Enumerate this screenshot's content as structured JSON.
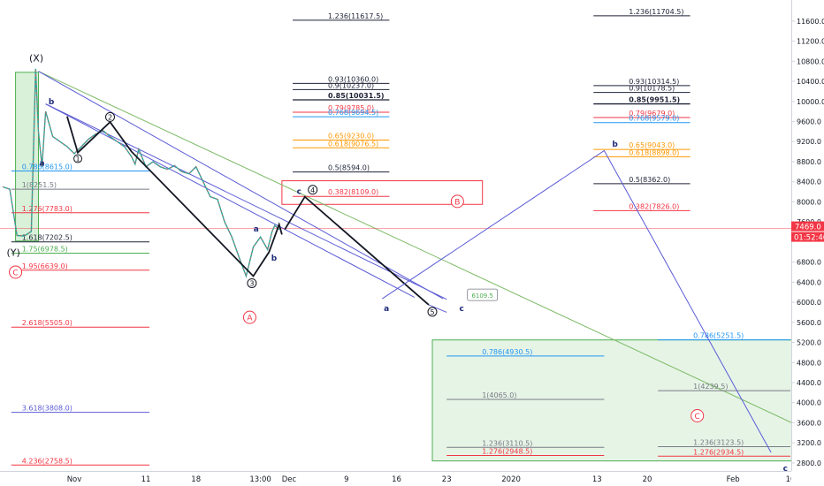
{
  "chart_data": {
    "type": "line",
    "title": "",
    "xlabel": "",
    "ylabel": "",
    "ylim": [
      2640,
      12020
    ],
    "grid": false,
    "x_ticks": [
      {
        "d": 10,
        "label": "Nov"
      },
      {
        "d": 20,
        "label": "11"
      },
      {
        "d": 27,
        "label": "18"
      },
      {
        "d": 36,
        "label": "13:00"
      },
      {
        "d": 40,
        "label": "Dec"
      },
      {
        "d": 48,
        "label": "9"
      },
      {
        "d": 55,
        "label": "16"
      },
      {
        "d": 62,
        "label": "23"
      },
      {
        "d": 71,
        "label": "2020"
      },
      {
        "d": 83,
        "label": "13"
      },
      {
        "d": 90,
        "label": "20"
      },
      {
        "d": 102,
        "label": "Feb"
      },
      {
        "d": 110,
        "label": "10"
      }
    ],
    "y_ticks": [
      11600,
      11200,
      10800,
      10400,
      10000,
      9600,
      9200,
      8800,
      8400,
      8000,
      7600,
      6800,
      6400,
      6000,
      5600,
      5200,
      4800,
      4400,
      4000,
      3600,
      3200,
      2800
    ],
    "current_price": {
      "value": 7469,
      "label": "7469.0",
      "timer": "01:52:46"
    },
    "price_series": [
      [
        0,
        8300
      ],
      [
        1,
        8250
      ],
      [
        2,
        7330
      ],
      [
        3,
        7320
      ],
      [
        4,
        7410
      ],
      [
        4.6,
        10650
      ],
      [
        5,
        9400
      ],
      [
        5.5,
        8700
      ],
      [
        6,
        9800
      ],
      [
        7,
        9300
      ],
      [
        8,
        9200
      ],
      [
        9,
        9100
      ],
      [
        10,
        8960
      ],
      [
        11,
        9100
      ],
      [
        12,
        9250
      ],
      [
        13,
        9350
      ],
      [
        14,
        9420
      ],
      [
        15,
        9300
      ],
      [
        16,
        9200
      ],
      [
        17,
        9100
      ],
      [
        18,
        8900
      ],
      [
        18.5,
        8750
      ],
      [
        19,
        9050
      ],
      [
        20,
        8700
      ],
      [
        21,
        8800
      ],
      [
        22,
        8700
      ],
      [
        23,
        8650
      ],
      [
        24,
        8720
      ],
      [
        25,
        8600
      ],
      [
        26,
        8560
      ],
      [
        27,
        8700
      ],
      [
        28,
        8400
      ],
      [
        29,
        8100
      ],
      [
        30,
        8050
      ],
      [
        31,
        7600
      ],
      [
        32,
        7300
      ],
      [
        33,
        6900
      ],
      [
        34,
        6520
      ],
      [
        35,
        7100
      ],
      [
        36,
        7300
      ],
      [
        37,
        7050
      ],
      [
        37.6,
        7400
      ],
      [
        38,
        7530
      ],
      [
        38.6,
        7450
      ]
    ],
    "wave_path": [
      [
        9,
        9700
      ],
      [
        10.5,
        8980
      ],
      [
        15,
        9590
      ],
      [
        18,
        9000
      ],
      [
        35,
        6520
      ],
      [
        37.2,
        7000
      ],
      [
        38.6,
        7550
      ],
      [
        39,
        7350
      ]
    ],
    "projection_path": [
      [
        39.4,
        7450
      ],
      [
        42.2,
        8100
      ],
      [
        59.5,
        5950
      ]
    ],
    "projection2_path": [
      [
        59.5,
        5950
      ],
      [
        62,
        5800
      ]
    ],
    "forecast_path": [
      [
        53,
        6070
      ],
      [
        84,
        9020
      ],
      [
        107.3,
        3010
      ]
    ],
    "trendlines": [
      {
        "from": [
          5,
          10600
        ],
        "to": [
          115,
          3280
        ],
        "color": "#7cba65"
      },
      {
        "from": [
          5,
          10600
        ],
        "to": [
          61.5,
          6070
        ],
        "color": "#5b5bd6"
      },
      {
        "from": [
          6,
          9950
        ],
        "to": [
          57.5,
          6100
        ],
        "color": "#5b5bd6"
      },
      {
        "from": [
          6,
          9950
        ],
        "to": [
          62,
          6060
        ],
        "color": "#5b5bd6"
      }
    ],
    "wave_labels": [
      {
        "d": 4.7,
        "v": 10870,
        "text": "(X)",
        "style": "plain"
      },
      {
        "d": 1.5,
        "v": 7000,
        "text": "(Y)",
        "style": "plain"
      },
      {
        "d": 6.8,
        "v": 10000,
        "text": "b",
        "style": "bold"
      },
      {
        "d": 5.5,
        "v": 8770,
        "text": "a",
        "style": "bold"
      },
      {
        "d": 10.5,
        "v": 8860,
        "text": "1",
        "style": "circle-small"
      },
      {
        "d": 15,
        "v": 9690,
        "text": "2",
        "style": "circle"
      },
      {
        "d": 34.8,
        "v": 6380,
        "text": "3",
        "style": "circle"
      },
      {
        "d": 43.3,
        "v": 8240,
        "text": "4",
        "style": "circle"
      },
      {
        "d": 60,
        "v": 5810,
        "text": "5",
        "style": "circle"
      },
      {
        "d": 35.4,
        "v": 7460,
        "text": "a",
        "style": "bold"
      },
      {
        "d": 37.9,
        "v": 6880,
        "text": "b",
        "style": "bold"
      },
      {
        "d": 41.4,
        "v": 8210,
        "text": "c",
        "style": "bold"
      },
      {
        "d": 53.6,
        "v": 5880,
        "text": "a",
        "style": "bold"
      },
      {
        "d": 64.1,
        "v": 5880,
        "text": "c",
        "style": "bold"
      },
      {
        "d": 85.5,
        "v": 9150,
        "text": "b",
        "style": "bold"
      },
      {
        "d": 109.3,
        "v": 2690,
        "text": "c",
        "style": "bold"
      },
      {
        "d": 1.8,
        "v": 6600,
        "text": "C",
        "style": "circle-red"
      },
      {
        "d": 34.5,
        "v": 5700,
        "text": "A",
        "style": "circle-red"
      },
      {
        "d": 63.5,
        "v": 8010,
        "text": "B",
        "style": "circle-red"
      },
      {
        "d": 97,
        "v": 3740,
        "text": "C",
        "style": "circle-red"
      }
    ],
    "callout": {
      "text": "6109.5",
      "d": 67,
      "v": 6140
    },
    "boxes": [
      {
        "name": "red-zone-box",
        "from": [
          39,
          7950
        ],
        "to": [
          67,
          8420
        ],
        "stroke": "#f23645",
        "fill": "none"
      },
      {
        "name": "green-target-box",
        "from": [
          60,
          5250
        ],
        "to": [
          118,
          2840
        ],
        "stroke": "#4caf50",
        "fill": "#e6f4e6"
      },
      {
        "name": "green-start-box",
        "from": [
          1.8,
          10580
        ],
        "to": [
          5,
          7220
        ],
        "stroke": "#4caf50",
        "fill": "#d9f0d9"
      }
    ],
    "fib_levels": [
      {
        "label": "1.236(11617.5)",
        "value": 11617.5,
        "x1": 40.5,
        "x2": 54,
        "color": "#1e2236",
        "bold": false
      },
      {
        "label": "0.93(10360.0)",
        "value": 10360,
        "x1": 40.5,
        "x2": 54,
        "color": "#1e2236",
        "bold": false
      },
      {
        "label": "0.9(10237.0)",
        "value": 10237,
        "x1": 40.5,
        "x2": 54,
        "color": "#1e2236",
        "bold": false
      },
      {
        "label": "0.85(10031.5)",
        "value": 10031.5,
        "x1": 40.5,
        "x2": 54,
        "color": "#1e2236",
        "bold": true
      },
      {
        "label": "0.79(9785.0)",
        "value": 9785,
        "x1": 40.5,
        "x2": 54,
        "color": "#f23645",
        "bold": false
      },
      {
        "label": "0.768(9694.5)",
        "value": 9694.5,
        "x1": 40.5,
        "x2": 54,
        "color": "#2196f3",
        "bold": false
      },
      {
        "label": "0.65(9230.0)",
        "value": 9230,
        "x1": 40.5,
        "x2": 54,
        "color": "#ff9800",
        "bold": false
      },
      {
        "label": "0.618(9076.5)",
        "value": 9076.5,
        "x1": 40.5,
        "x2": 54,
        "color": "#ff9800",
        "bold": false
      },
      {
        "label": "0.5(8594.0)",
        "value": 8594,
        "x1": 40.5,
        "x2": 54,
        "color": "#1e2236",
        "bold": false
      },
      {
        "label": "0.382(8109.0)",
        "value": 8109,
        "x1": 40.5,
        "x2": 54,
        "color": "#f23645",
        "bold": false
      },
      {
        "label": "1.236(11704.5)",
        "value": 11704.5,
        "x1": 82.5,
        "x2": 96,
        "color": "#1e2236",
        "bold": false
      },
      {
        "label": "0.93(10314.5)",
        "value": 10314.5,
        "x1": 82.5,
        "x2": 96,
        "color": "#1e2236",
        "bold": false
      },
      {
        "label": "0.9(10178.5)",
        "value": 10178.5,
        "x1": 82.5,
        "x2": 96,
        "color": "#1e2236",
        "bold": false
      },
      {
        "label": "0.85(9951.5)",
        "value": 9951.5,
        "x1": 82.5,
        "x2": 96,
        "color": "#1e2236",
        "bold": true
      },
      {
        "label": "0.79(9679.0)",
        "value": 9679,
        "x1": 82.5,
        "x2": 96,
        "color": "#f23645",
        "bold": false
      },
      {
        "label": "0.768(9579.0)",
        "value": 9579,
        "x1": 82.5,
        "x2": 96,
        "color": "#2196f3",
        "bold": false
      },
      {
        "label": "0.65(9043.0)",
        "value": 9043,
        "x1": 82.5,
        "x2": 96,
        "color": "#ff9800",
        "bold": false
      },
      {
        "label": "0.618(8898.0)",
        "value": 8898,
        "x1": 82.5,
        "x2": 96,
        "color": "#ff9800",
        "bold": false
      },
      {
        "label": "0.5(8362.0)",
        "value": 8362,
        "x1": 82.5,
        "x2": 96,
        "color": "#1e2236",
        "bold": false
      },
      {
        "label": "0.382(7826.0)",
        "value": 7826,
        "x1": 82.5,
        "x2": 96,
        "color": "#f23645",
        "bold": false
      },
      {
        "label": "0.786(8615.0)",
        "value": 8615,
        "x1": 1.2,
        "x2": 20.5,
        "color": "#2196f3",
        "bold": false
      },
      {
        "label": "1(8251.5)",
        "value": 8251.5,
        "x1": 1.2,
        "x2": 20.5,
        "color": "#787b86",
        "bold": false
      },
      {
        "label": "1.276(7783.0)",
        "value": 7783,
        "x1": 1.2,
        "x2": 20.5,
        "color": "#f23645",
        "bold": false
      },
      {
        "label": "1.618(7202.5)",
        "value": 7202.5,
        "x1": 1.2,
        "x2": 20.5,
        "color": "#1e2236",
        "bold": false
      },
      {
        "label": "1.75(6978.5)",
        "value": 6978.5,
        "x1": 1.2,
        "x2": 20.5,
        "color": "#4caf50",
        "bold": false
      },
      {
        "label": "1.95(6639.0)",
        "value": 6639,
        "x1": 1.2,
        "x2": 20.5,
        "color": "#f23645",
        "bold": false
      },
      {
        "label": "2.618(5505.0)",
        "value": 5505,
        "x1": 1.2,
        "x2": 20.5,
        "color": "#f23645",
        "bold": false
      },
      {
        "label": "3.618(3808.0)",
        "value": 3808,
        "x1": 1.2,
        "x2": 20.5,
        "color": "#5b5bd6",
        "bold": false
      },
      {
        "label": "4.236(2758.5)",
        "value": 2758.5,
        "x1": 1.2,
        "x2": 20.5,
        "color": "#f23645",
        "bold": false
      },
      {
        "label": "0.786(4930.5)",
        "value": 4930.5,
        "x1": 62,
        "x2": 84,
        "color": "#2196f3",
        "bold": false
      },
      {
        "label": "1(4065.0)",
        "value": 4065,
        "x1": 62,
        "x2": 84,
        "color": "#787b86",
        "bold": false
      },
      {
        "label": "1.236(3110.5)",
        "value": 3110.5,
        "x1": 62,
        "x2": 84,
        "color": "#787b86",
        "bold": false
      },
      {
        "label": "1.276(2948.5)",
        "value": 2948.5,
        "x1": 62,
        "x2": 84,
        "color": "#f23645",
        "bold": false
      },
      {
        "label": "0.786(5251.5)",
        "value": 5251.5,
        "x1": 91.5,
        "x2": 110,
        "color": "#2196f3",
        "bold": false
      },
      {
        "label": "1(4239.5)",
        "value": 4239.5,
        "x1": 91.5,
        "x2": 110,
        "color": "#787b86",
        "bold": false
      },
      {
        "label": "1.236(3123.5)",
        "value": 3123.5,
        "x1": 91.5,
        "x2": 110,
        "color": "#787b86",
        "bold": false
      },
      {
        "label": "1.276(2934.5)",
        "value": 2934.5,
        "x1": 91.5,
        "x2": 110,
        "color": "#f23645",
        "bold": false
      }
    ]
  }
}
